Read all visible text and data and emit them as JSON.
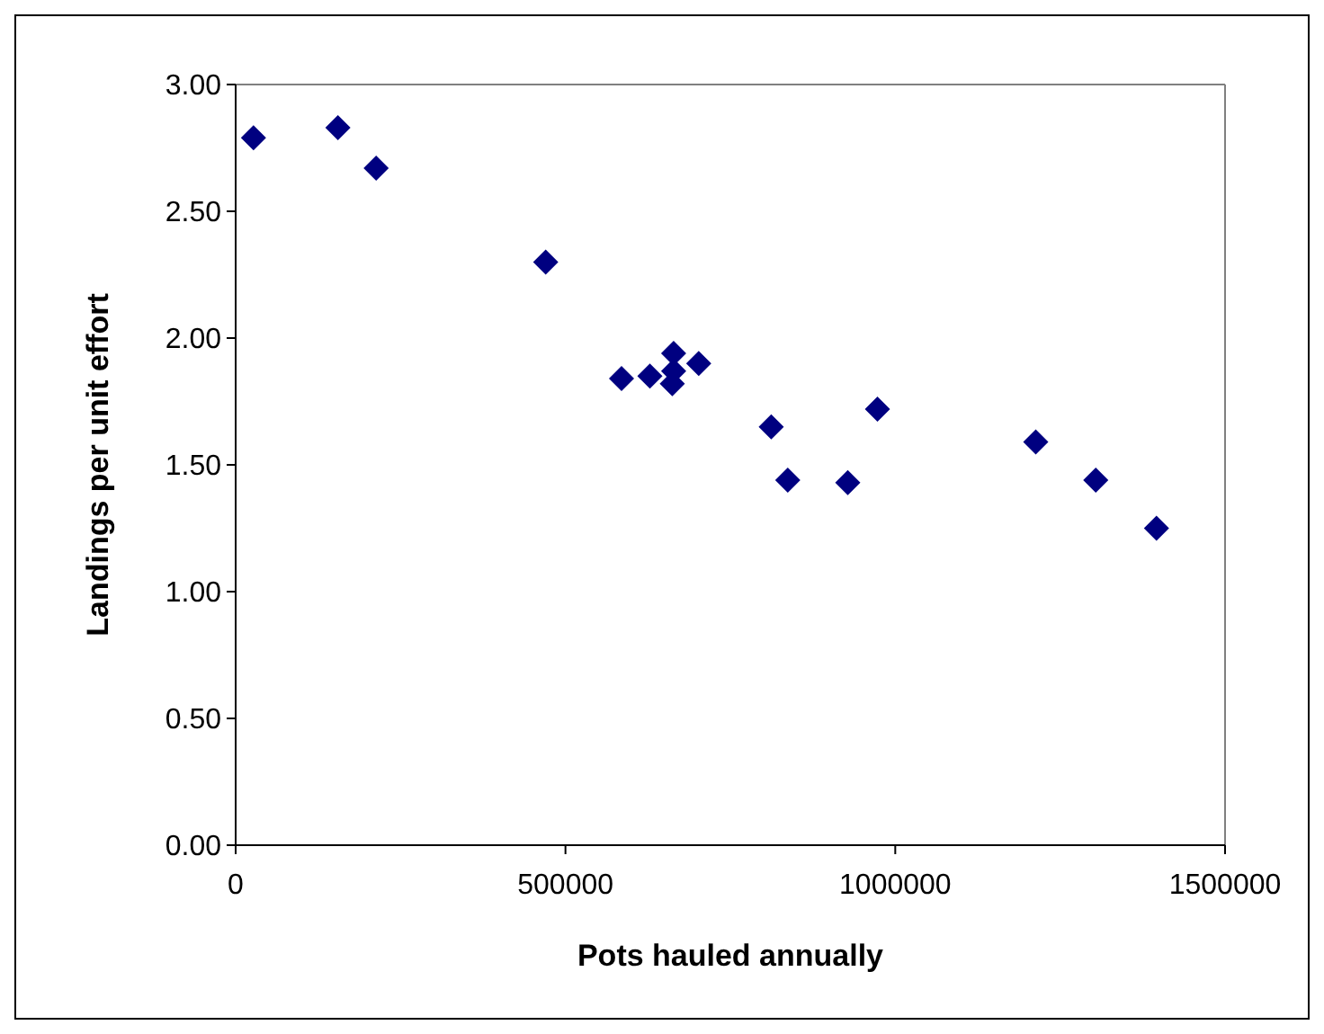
{
  "chart_data": {
    "type": "scatter",
    "xlabel": "Pots hauled annually",
    "ylabel": "Landings per unit effort",
    "x": [
      27000,
      155000,
      213000,
      470000,
      585000,
      628000,
      664000,
      664000,
      662000,
      702000,
      812000,
      837000,
      928000,
      973000,
      1213000,
      1304000,
      1396000
    ],
    "series": [
      {
        "color": "#000080",
        "values": [
          2.79,
          2.83,
          2.67,
          2.3,
          1.84,
          1.85,
          1.94,
          1.87,
          1.82,
          1.9,
          1.65,
          1.44,
          1.43,
          1.72,
          1.59,
          1.44,
          1.25
        ]
      }
    ],
    "xlim": [
      0,
      1500000
    ],
    "xticks": [
      0,
      500000,
      1000000,
      1500000
    ],
    "ylim": [
      0,
      3
    ],
    "yticks": [
      {
        "value": 0,
        "label": "0.00"
      },
      {
        "value": 0.5,
        "label": "0.50"
      },
      {
        "value": 1,
        "label": "1.00"
      },
      {
        "value": 1.5,
        "label": "1.50"
      },
      {
        "value": 2,
        "label": "2.00"
      },
      {
        "value": 2.5,
        "label": "2.50"
      },
      {
        "value": 3,
        "label": "3.00"
      }
    ],
    "marker": "diamond",
    "grid": false
  }
}
